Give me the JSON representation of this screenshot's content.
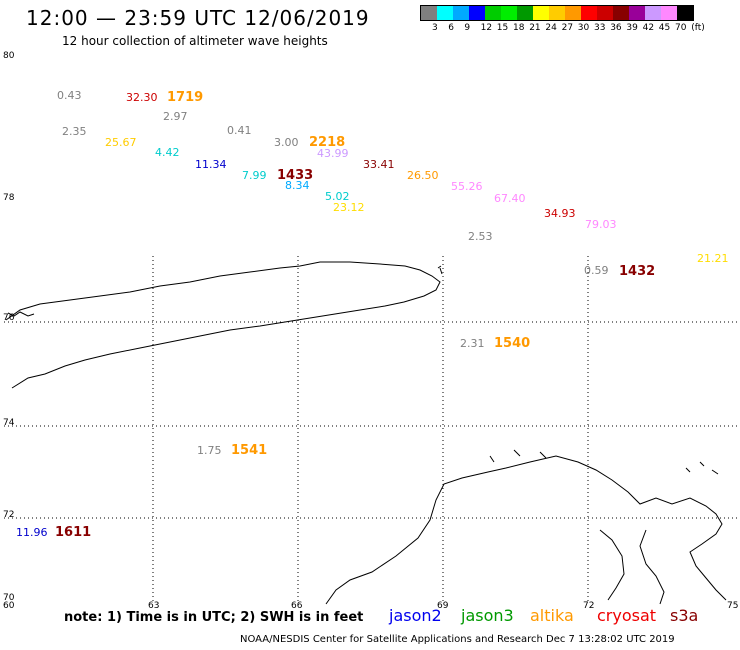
{
  "title": "12:00 — 23:59 UTC 12/06/2019",
  "subtitle": "12 hour collection of altimeter wave heights",
  "legend": {
    "colors": [
      "#7f7f7f",
      "#00ffff",
      "#00aaff",
      "#0000ff",
      "#00cc00",
      "#00ee00",
      "#009900",
      "#ffff00",
      "#ffcc00",
      "#ff9900",
      "#ff0000",
      "#cc0000",
      "#880000",
      "#990099",
      "#cc99ff",
      "#ff88ff",
      "#000000"
    ],
    "ticks": [
      "3",
      "6",
      "9",
      "12",
      "15",
      "18",
      "21",
      "24",
      "27",
      "30",
      "33",
      "36",
      "39",
      "42",
      "45",
      "70",
      "(ft)"
    ]
  },
  "axes": {
    "lat_labels": [
      "80",
      "78",
      "76",
      "74",
      "72",
      "70"
    ],
    "lon_labels": [
      "60",
      "63",
      "66",
      "69",
      "72",
      "75"
    ]
  },
  "observations": [
    {
      "text": "0.43",
      "color": "#808080"
    },
    {
      "text": "32.30",
      "color": "#cc0000"
    },
    {
      "text": "1719",
      "color": "#ff9900",
      "bold": true
    },
    {
      "text": "2.97",
      "color": "#808080"
    },
    {
      "text": "2.35",
      "color": "#808080"
    },
    {
      "text": "25.67",
      "color": "#ffcc00"
    },
    {
      "text": "4.42",
      "color": "#00cccc"
    },
    {
      "text": "0.41",
      "color": "#808080"
    },
    {
      "text": "3.00",
      "color": "#808080"
    },
    {
      "text": "2218",
      "color": "#ff9900",
      "bold": true
    },
    {
      "text": "43.99",
      "color": "#cc99ff"
    },
    {
      "text": "11.34",
      "color": "#0000cc"
    },
    {
      "text": "7.99",
      "color": "#00cccc"
    },
    {
      "text": "1433",
      "color": "#880000",
      "bold": true
    },
    {
      "text": "8.34",
      "color": "#00aaff"
    },
    {
      "text": "33.41",
      "color": "#880000"
    },
    {
      "text": "26.50",
      "color": "#ff9900"
    },
    {
      "text": "5.02",
      "color": "#00cccc"
    },
    {
      "text": "55.26",
      "color": "#ff88ff"
    },
    {
      "text": "67.40",
      "color": "#ff88ff"
    },
    {
      "text": "23.12",
      "color": "#ffdd00"
    },
    {
      "text": "34.93",
      "color": "#cc0000"
    },
    {
      "text": "79.03",
      "color": "#ff88ff"
    },
    {
      "text": "2.53",
      "color": "#808080"
    },
    {
      "text": "21.21",
      "color": "#ffdd00"
    },
    {
      "text": "0.59",
      "color": "#808080"
    },
    {
      "text": "1432",
      "color": "#880000",
      "bold": true
    },
    {
      "text": "2.31",
      "color": "#808080"
    },
    {
      "text": "1540",
      "color": "#ff9900",
      "bold": true
    },
    {
      "text": "1.75",
      "color": "#808080"
    },
    {
      "text": "1541",
      "color": "#ff9900",
      "bold": true
    },
    {
      "text": "11.96",
      "color": "#0000cc"
    },
    {
      "text": "1611",
      "color": "#880000",
      "bold": true
    }
  ],
  "note": "note: 1) Time is in UTC; 2) SWH is in feet",
  "satellites": [
    {
      "name": "jason2",
      "color": "#0000ee"
    },
    {
      "name": "jason3",
      "color": "#009900"
    },
    {
      "name": "altika",
      "color": "#ff9900"
    },
    {
      "name": "cryosat",
      "color": "#ee0000"
    },
    {
      "name": "s3a",
      "color": "#880000"
    }
  ],
  "footer": "NOAA/NESDIS Center for Satellite Applications and Research     Dec  7 13:28:02 UTC 2019"
}
